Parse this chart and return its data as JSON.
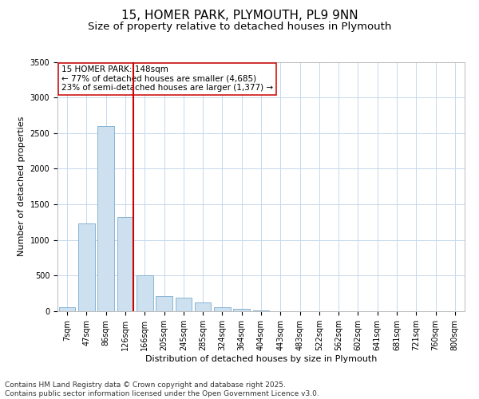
{
  "title_line1": "15, HOMER PARK, PLYMOUTH, PL9 9NN",
  "title_line2": "Size of property relative to detached houses in Plymouth",
  "xlabel": "Distribution of detached houses by size in Plymouth",
  "ylabel": "Number of detached properties",
  "categories": [
    "7sqm",
    "47sqm",
    "86sqm",
    "126sqm",
    "166sqm",
    "205sqm",
    "245sqm",
    "285sqm",
    "324sqm",
    "364sqm",
    "404sqm",
    "443sqm",
    "483sqm",
    "522sqm",
    "562sqm",
    "602sqm",
    "641sqm",
    "681sqm",
    "721sqm",
    "760sqm",
    "800sqm"
  ],
  "values": [
    55,
    1230,
    2600,
    1320,
    500,
    215,
    185,
    120,
    55,
    35,
    10,
    5,
    3,
    1,
    0,
    0,
    0,
    0,
    0,
    0,
    0
  ],
  "bar_color": "#cce0f0",
  "bar_edge_color": "#7aaccc",
  "vline_x_index": 3,
  "vline_color": "#cc0000",
  "annotation_line1": "15 HOMER PARK: 148sqm",
  "annotation_line2": "← 77% of detached houses are smaller (4,685)",
  "annotation_line3": "23% of semi-detached houses are larger (1,377) →",
  "ylim": [
    0,
    3500
  ],
  "yticks": [
    0,
    500,
    1000,
    1500,
    2000,
    2500,
    3000,
    3500
  ],
  "background_color": "#ffffff",
  "grid_color": "#c5d8ed",
  "footnote_line1": "Contains HM Land Registry data © Crown copyright and database right 2025.",
  "footnote_line2": "Contains public sector information licensed under the Open Government Licence v3.0.",
  "title_fontsize": 11,
  "subtitle_fontsize": 9.5,
  "axis_label_fontsize": 8,
  "tick_fontsize": 7,
  "annotation_fontsize": 7.5,
  "footnote_fontsize": 6.5
}
